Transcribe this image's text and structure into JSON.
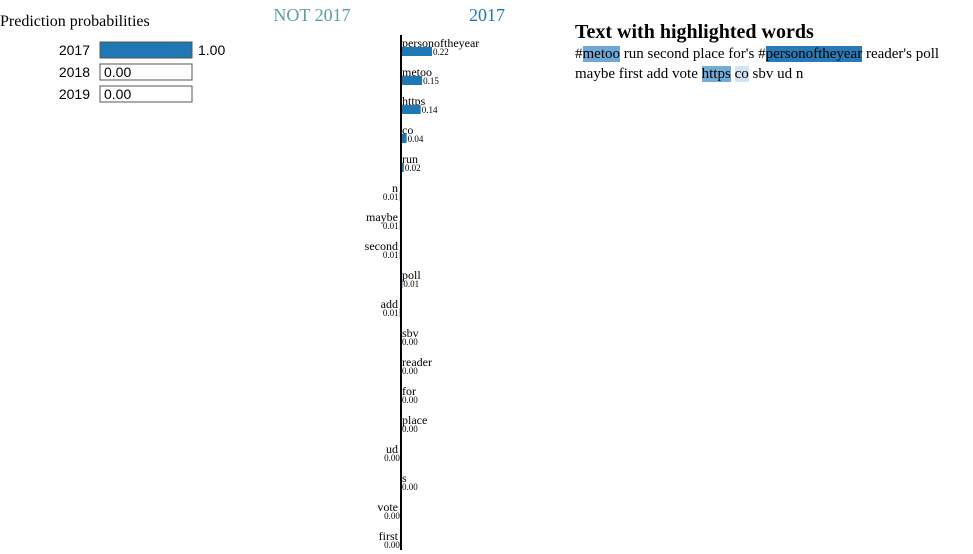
{
  "chart_data": [
    {
      "type": "bar",
      "orientation": "horizontal",
      "title": "Prediction probabilities",
      "categories": [
        "2017",
        "2018",
        "2019"
      ],
      "values": [
        1.0,
        0.0,
        0.0
      ],
      "value_labels": [
        "1.00",
        "0.00",
        "0.00"
      ],
      "color": "#1f77b4",
      "xlim": [
        0,
        1
      ]
    },
    {
      "type": "diverging_bar",
      "orientation": "horizontal",
      "class_names": [
        "NOT 2017",
        "2017"
      ],
      "class_colors": [
        "#5f9ea0",
        "#1f77b4"
      ],
      "categories": [
        "personoftheyear",
        "metoo",
        "https",
        "co",
        "run",
        "n",
        "maybe",
        "second",
        "poll",
        "add",
        "sbv",
        "reader",
        "for",
        "place",
        "ud",
        "s",
        "vote",
        "first"
      ],
      "values": [
        0.22,
        0.15,
        0.14,
        0.04,
        0.02,
        -0.01,
        -0.01,
        -0.01,
        0.01,
        -0.01,
        0,
        0,
        0,
        0,
        -0.001,
        0,
        -0.001,
        -0.001
      ],
      "value_labels": [
        "0.22",
        "0.15",
        "0.14",
        "0.04",
        "0.02",
        "0.01",
        "0.01",
        "0.01",
        "0.01",
        "0.01",
        "0.00",
        "0.00",
        "0.00",
        "0.00",
        "0.00",
        "0.00",
        "0.00",
        "0.00"
      ],
      "xlim": [
        -0.22,
        0.22
      ]
    }
  ],
  "text_panel": {
    "title": "Text with highlighted words",
    "segments": [
      {
        "text": "#"
      },
      {
        "text": "metoo",
        "color": "#6fa8d6"
      },
      {
        "text": " run second place for's #"
      },
      {
        "text": "personoftheyear",
        "color": "#2a7ab8"
      },
      {
        "text": " reader's poll maybe first add vote "
      },
      {
        "text": "https",
        "color": "#74acd8"
      },
      {
        "text": " "
      },
      {
        "text": "co",
        "color": "#d2e4f2"
      },
      {
        "text": " sbv ud n"
      }
    ]
  }
}
